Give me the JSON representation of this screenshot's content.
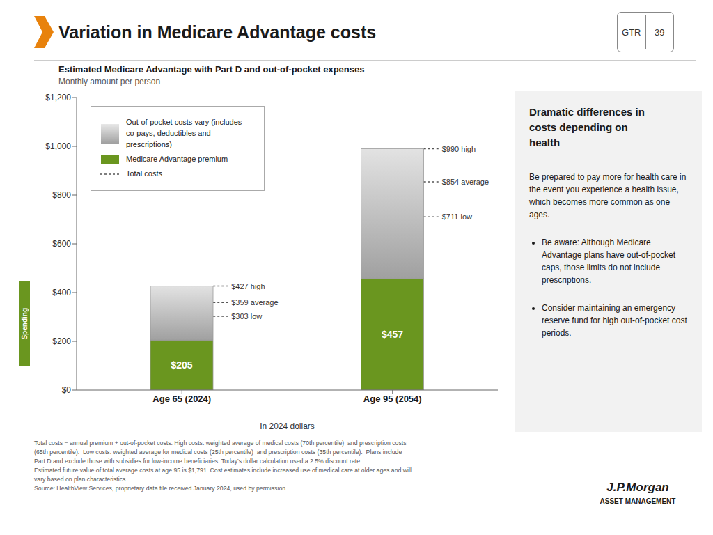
{
  "chart_data": {
    "type": "bar",
    "title": "Variation in Medicare Advantage costs",
    "subtitle": "Estimated Medicare Advantage with Part D and out-of-pocket expenses",
    "x_label": "In 2024 dollars",
    "categories": [
      "Age 65 (2024)",
      "Age 95 (2054)"
    ],
    "stacked": true,
    "series": [
      {
        "name": "Out-of-pocket costs vary (includes\nco-pays, deductibles and\nprescriptions)",
        "color": "#a0a0a0",
        "values": [
          222,
          533
        ]
      },
      {
        "name": "Medicare Advantage premium",
        "color": "#6a961f",
        "values": [
          205,
          457
        ],
        "data_labels": true,
        "value_labels": [
          "$205",
          "$457"
        ]
      },
      {
        "name": "Total costs",
        "type": "scatter",
        "marker": "dash",
        "line_style": "dotted",
        "color": "#555555",
        "values": [
          [
            427,
            359,
            303
          ],
          [
            990,
            854,
            711
          ]
        ],
        "data_labels": true,
        "value_labels": [
          [
            "$427 high",
            "$359 average",
            "$303 low"
          ],
          [
            "$990 high",
            "$854 average",
            "$711 low"
          ]
        ]
      }
    ],
    "ylim": [
      0,
      1200
    ],
    "yticks": [
      {
        "value": 0,
        "label": "$0"
      },
      {
        "value": 200,
        "label": "$200"
      },
      {
        "value": 400,
        "label": "$400"
      },
      {
        "value": 600,
        "label": "$600"
      },
      {
        "value": 800,
        "label": "$800"
      },
      {
        "value": 1000,
        "label": "$1,000"
      },
      {
        "value": 1200,
        "label": "$1,200"
      }
    ],
    "grid": false,
    "annotations": [
      "Monthly amount per person",
      "GTR",
      "39",
      "Spending",
      "Dramatic differences in\ncosts depending on\nhealth",
      "Be prepared to pay more for health care in the event you experience a health issue, which becomes more common as one ages.",
      "Be aware: Although Medicare Advantage plans have out-of-pocket caps, those limits do not include prescriptions.",
      "Consider maintaining an emergency reserve fund for high out-of-pocket cost periods.",
      "Total costs = annual premium + out-of-pocket costs. High costs: weighted average of medical costs (70th percentile)  and prescription costs\n(65th percentile).  Low costs: weighted average for medical costs (25th percentile)  and prescription costs (35th percentile).  Plans include\nPart D and exclude those with subsidies for low-income beneficiaries. Today's dollar calculation used a 2.5% discount rate.\nEstimated future value of total average costs at age 95 is $1,791. Cost estimates include increased use of medical care at older ages and will\nvary based on plan characteristics.\nSource: HealthView Services, proprietary data file received January 2024, used by permission.",
      "J.P.Morgan",
      "ASSET MANAGEMENT"
    ]
  }
}
